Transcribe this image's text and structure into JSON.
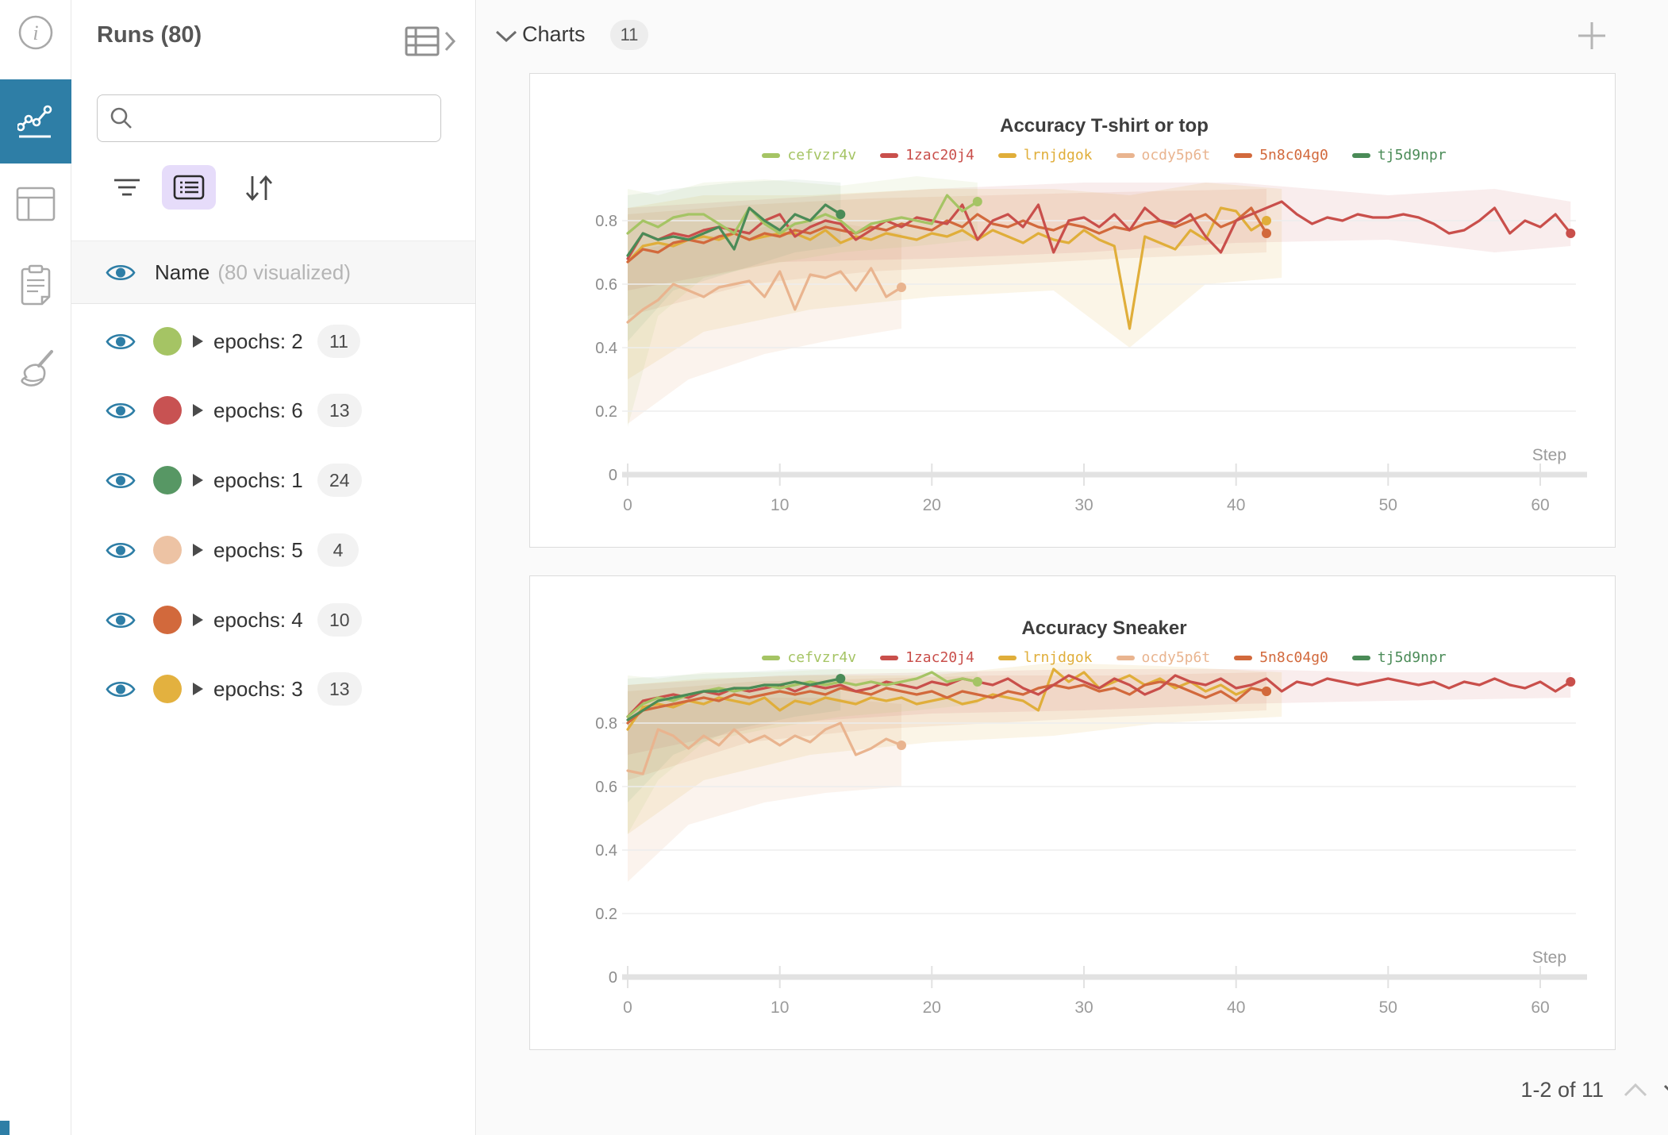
{
  "left_rail": {
    "items": [
      {
        "icon": "info-icon",
        "selected": false
      },
      {
        "icon": "line-chart-icon",
        "selected": true
      },
      {
        "icon": "table-panel-icon",
        "selected": false
      },
      {
        "icon": "clipboard-icon",
        "selected": false
      },
      {
        "icon": "broom-icon",
        "selected": false
      }
    ]
  },
  "runs_panel": {
    "title": "Runs (80)",
    "search": {
      "placeholder": "",
      "value": ""
    },
    "header_row": {
      "name": "Name",
      "visualized": "(80 visualized)"
    },
    "groups": [
      {
        "label": "epochs: 2",
        "count": "11",
        "color": "#a5c464"
      },
      {
        "label": "epochs: 6",
        "count": "13",
        "color": "#c85252"
      },
      {
        "label": "epochs: 1",
        "count": "24",
        "color": "#579764"
      },
      {
        "label": "epochs: 5",
        "count": "4",
        "color": "#edc3a4"
      },
      {
        "label": "epochs: 4",
        "count": "10",
        "color": "#d2693c"
      },
      {
        "label": "epochs: 3",
        "count": "13",
        "color": "#e3b13f"
      }
    ]
  },
  "main": {
    "section_title": "Charts",
    "section_count": "11",
    "pagination": {
      "label": "1-2 of 11"
    }
  },
  "chart_data": [
    {
      "type": "line",
      "title": "Accuracy T-shirt or top",
      "xlabel": "Step",
      "x_ticks": [
        0,
        10,
        20,
        30,
        40,
        50,
        60
      ],
      "y_ticks": [
        0,
        0.2,
        0.4,
        0.6,
        0.8
      ],
      "xlim": [
        0,
        63
      ],
      "ylim": [
        0,
        1.05
      ],
      "grid": true,
      "legend_position": "top",
      "x0": 0,
      "dx": 1,
      "series": [
        {
          "name": "cefvzr4v",
          "color": "#a5c464",
          "y": [
            0.76,
            0.8,
            0.78,
            0.81,
            0.82,
            0.82,
            0.79,
            0.76,
            0.84,
            0.79,
            0.76,
            0.79,
            0.8,
            0.82,
            0.8,
            0.76,
            0.79,
            0.8,
            0.81,
            0.8,
            0.79,
            0.88,
            0.83,
            0.86
          ],
          "band": {
            "x": [
              0,
              2,
              5,
              9,
              14,
              19,
              23
            ],
            "upper": [
              0.9,
              0.88,
              0.92,
              0.93,
              0.91,
              0.94,
              0.92
            ],
            "lower": [
              0.15,
              0.5,
              0.62,
              0.66,
              0.7,
              0.72,
              0.74
            ],
            "opacity": 0.1
          }
        },
        {
          "name": "1zac20j4",
          "color": "#c94f4b",
          "y": [
            0.68,
            0.76,
            0.74,
            0.76,
            0.75,
            0.77,
            0.78,
            0.77,
            0.76,
            0.8,
            0.82,
            0.75,
            0.78,
            0.8,
            0.79,
            0.74,
            0.77,
            0.8,
            0.78,
            0.81,
            0.8,
            0.79,
            0.85,
            0.74,
            0.8,
            0.82,
            0.78,
            0.85,
            0.7,
            0.8,
            0.81,
            0.78,
            0.82,
            0.77,
            0.84,
            0.8,
            0.79,
            0.82,
            0.75,
            0.7,
            0.8,
            0.82,
            0.84,
            0.86,
            0.82,
            0.79,
            0.81,
            0.8,
            0.82,
            0.81,
            0.81,
            0.82,
            0.81,
            0.79,
            0.76,
            0.77,
            0.8,
            0.84,
            0.76,
            0.8,
            0.78,
            0.82,
            0.76
          ],
          "band": {
            "x": [
              0,
              10,
              20,
              30,
              40,
              50,
              57,
              62
            ],
            "upper": [
              0.84,
              0.87,
              0.9,
              0.92,
              0.92,
              0.88,
              0.9,
              0.86
            ],
            "lower": [
              0.58,
              0.67,
              0.68,
              0.7,
              0.73,
              0.74,
              0.7,
              0.72
            ],
            "opacity": 0.1
          }
        },
        {
          "name": "lrnjdgok",
          "color": "#e0ae3a",
          "y": [
            0.67,
            0.72,
            0.73,
            0.72,
            0.74,
            0.75,
            0.74,
            0.76,
            0.74,
            0.75,
            0.76,
            0.76,
            0.74,
            0.77,
            0.73,
            0.75,
            0.74,
            0.76,
            0.75,
            0.74,
            0.76,
            0.75,
            0.77,
            0.74,
            0.77,
            0.75,
            0.73,
            0.76,
            0.74,
            0.73,
            0.77,
            0.74,
            0.72,
            0.46,
            0.75,
            0.73,
            0.71,
            0.77,
            0.74,
            0.84,
            0.83,
            0.77,
            0.8
          ],
          "band": {
            "x": [
              0,
              5,
              12,
              20,
              28,
              33,
              38,
              43
            ],
            "upper": [
              0.84,
              0.88,
              0.88,
              0.9,
              0.9,
              0.88,
              0.92,
              0.9
            ],
            "lower": [
              0.3,
              0.45,
              0.52,
              0.56,
              0.58,
              0.4,
              0.6,
              0.62
            ],
            "opacity": 0.12
          }
        },
        {
          "name": "ocdy5p6t",
          "color": "#e9b48f",
          "y": [
            0.48,
            0.52,
            0.55,
            0.6,
            0.58,
            0.56,
            0.59,
            0.6,
            0.61,
            0.56,
            0.64,
            0.52,
            0.63,
            0.62,
            0.64,
            0.58,
            0.65,
            0.56,
            0.59
          ],
          "band": {
            "x": [
              0,
              4,
              9,
              13,
              18
            ],
            "upper": [
              0.7,
              0.74,
              0.78,
              0.8,
              0.76
            ],
            "lower": [
              0.16,
              0.3,
              0.38,
              0.42,
              0.46
            ],
            "opacity": 0.16
          }
        },
        {
          "name": "5n8c04g0",
          "color": "#d2693c",
          "y": [
            0.67,
            0.71,
            0.7,
            0.73,
            0.74,
            0.73,
            0.75,
            0.76,
            0.74,
            0.76,
            0.75,
            0.77,
            0.76,
            0.78,
            0.77,
            0.76,
            0.78,
            0.77,
            0.79,
            0.78,
            0.77,
            0.8,
            0.78,
            0.82,
            0.79,
            0.78,
            0.8,
            0.78,
            0.77,
            0.79,
            0.78,
            0.76,
            0.78,
            0.77,
            0.79,
            0.8,
            0.78,
            0.8,
            0.82,
            0.78,
            0.8,
            0.84,
            0.76
          ],
          "band": {
            "x": [
              0,
              8,
              16,
              24,
              32,
              42
            ],
            "upper": [
              0.82,
              0.85,
              0.87,
              0.88,
              0.89,
              0.9
            ],
            "lower": [
              0.5,
              0.6,
              0.64,
              0.66,
              0.68,
              0.7
            ],
            "opacity": 0.1
          }
        },
        {
          "name": "tj5d9npr",
          "color": "#4a8b57",
          "y": [
            0.69,
            0.76,
            0.74,
            0.75,
            0.74,
            0.76,
            0.78,
            0.71,
            0.84,
            0.8,
            0.77,
            0.82,
            0.8,
            0.85,
            0.82
          ],
          "band": {
            "x": [
              0,
              3,
              7,
              11,
              14
            ],
            "upper": [
              0.88,
              0.9,
              0.92,
              0.93,
              0.92
            ],
            "lower": [
              0.42,
              0.58,
              0.64,
              0.7,
              0.72
            ],
            "opacity": 0.08
          }
        }
      ]
    },
    {
      "type": "line",
      "title": "Accuracy Sneaker",
      "xlabel": "Step",
      "x_ticks": [
        0,
        10,
        20,
        30,
        40,
        50,
        60
      ],
      "y_ticks": [
        0,
        0.2,
        0.4,
        0.6,
        0.8
      ],
      "xlim": [
        0,
        63
      ],
      "ylim": [
        0,
        1.05
      ],
      "grid": true,
      "legend_position": "top",
      "x0": 0,
      "dx": 1,
      "series": [
        {
          "name": "cefvzr4v",
          "color": "#a5c464",
          "y": [
            0.82,
            0.86,
            0.88,
            0.87,
            0.89,
            0.9,
            0.91,
            0.9,
            0.91,
            0.92,
            0.91,
            0.92,
            0.93,
            0.92,
            0.93,
            0.92,
            0.93,
            0.92,
            0.93,
            0.94,
            0.96,
            0.93,
            0.94,
            0.93
          ],
          "band": {
            "x": [
              0,
              2,
              5,
              9,
              14,
              19,
              23
            ],
            "upper": [
              0.95,
              0.94,
              0.96,
              0.96,
              0.97,
              0.97,
              0.96
            ],
            "lower": [
              0.45,
              0.62,
              0.74,
              0.78,
              0.82,
              0.84,
              0.86
            ],
            "opacity": 0.1
          }
        },
        {
          "name": "1zac20j4",
          "color": "#c94f4b",
          "y": [
            0.82,
            0.87,
            0.88,
            0.89,
            0.88,
            0.9,
            0.89,
            0.91,
            0.9,
            0.91,
            0.92,
            0.9,
            0.92,
            0.91,
            0.92,
            0.9,
            0.91,
            0.93,
            0.92,
            0.91,
            0.93,
            0.92,
            0.94,
            0.93,
            0.92,
            0.94,
            0.91,
            0.89,
            0.92,
            0.95,
            0.93,
            0.91,
            0.94,
            0.92,
            0.89,
            0.91,
            0.95,
            0.93,
            0.92,
            0.94,
            0.91,
            0.92,
            0.94,
            0.9,
            0.93,
            0.92,
            0.94,
            0.93,
            0.92,
            0.93,
            0.94,
            0.93,
            0.92,
            0.93,
            0.91,
            0.93,
            0.92,
            0.94,
            0.92,
            0.91,
            0.93,
            0.9,
            0.93
          ],
          "band": {
            "x": [
              0,
              10,
              20,
              30,
              40,
              50,
              62
            ],
            "upper": [
              0.92,
              0.95,
              0.96,
              0.97,
              0.97,
              0.96,
              0.96
            ],
            "lower": [
              0.7,
              0.8,
              0.83,
              0.84,
              0.86,
              0.87,
              0.88
            ],
            "opacity": 0.1
          }
        },
        {
          "name": "lrnjdgok",
          "color": "#e0ae3a",
          "y": [
            0.78,
            0.85,
            0.86,
            0.85,
            0.87,
            0.86,
            0.88,
            0.87,
            0.86,
            0.88,
            0.84,
            0.87,
            0.86,
            0.88,
            0.87,
            0.86,
            0.88,
            0.87,
            0.88,
            0.86,
            0.87,
            0.88,
            0.86,
            0.87,
            0.89,
            0.88,
            0.87,
            0.84,
            0.97,
            0.93,
            0.96,
            0.91,
            0.93,
            0.95,
            0.92,
            0.94,
            0.91,
            0.93,
            0.9,
            0.92,
            0.89,
            0.91,
            0.9
          ],
          "band": {
            "x": [
              0,
              5,
              12,
              20,
              28,
              35,
              43
            ],
            "upper": [
              0.92,
              0.94,
              0.95,
              0.95,
              0.99,
              0.98,
              0.96
            ],
            "lower": [
              0.45,
              0.62,
              0.7,
              0.74,
              0.76,
              0.8,
              0.82
            ],
            "opacity": 0.12
          }
        },
        {
          "name": "ocdy5p6t",
          "color": "#e9b48f",
          "y": [
            0.65,
            0.64,
            0.78,
            0.76,
            0.72,
            0.76,
            0.73,
            0.78,
            0.74,
            0.76,
            0.73,
            0.76,
            0.74,
            0.78,
            0.8,
            0.7,
            0.72,
            0.75,
            0.73
          ],
          "band": {
            "x": [
              0,
              4,
              9,
              13,
              18
            ],
            "upper": [
              0.84,
              0.86,
              0.88,
              0.88,
              0.86
            ],
            "lower": [
              0.3,
              0.48,
              0.55,
              0.58,
              0.6
            ],
            "opacity": 0.16
          }
        },
        {
          "name": "5n8c04g0",
          "color": "#d2693c",
          "y": [
            0.8,
            0.84,
            0.85,
            0.86,
            0.87,
            0.88,
            0.87,
            0.89,
            0.88,
            0.89,
            0.9,
            0.89,
            0.9,
            0.89,
            0.91,
            0.9,
            0.89,
            0.91,
            0.9,
            0.89,
            0.9,
            0.88,
            0.9,
            0.89,
            0.88,
            0.9,
            0.89,
            0.91,
            0.92,
            0.91,
            0.92,
            0.9,
            0.91,
            0.89,
            0.92,
            0.93,
            0.92,
            0.9,
            0.88,
            0.9,
            0.87,
            0.91,
            0.9
          ],
          "band": {
            "x": [
              0,
              8,
              16,
              24,
              32,
              42
            ],
            "upper": [
              0.9,
              0.93,
              0.94,
              0.95,
              0.95,
              0.96
            ],
            "lower": [
              0.62,
              0.74,
              0.78,
              0.8,
              0.82,
              0.84
            ],
            "opacity": 0.1
          }
        },
        {
          "name": "tj5d9npr",
          "color": "#4a8b57",
          "y": [
            0.81,
            0.84,
            0.87,
            0.88,
            0.89,
            0.9,
            0.9,
            0.91,
            0.91,
            0.92,
            0.92,
            0.93,
            0.92,
            0.93,
            0.94
          ],
          "band": {
            "x": [
              0,
              3,
              7,
              11,
              14
            ],
            "upper": [
              0.94,
              0.95,
              0.96,
              0.97,
              0.97
            ],
            "lower": [
              0.55,
              0.7,
              0.78,
              0.82,
              0.84
            ],
            "opacity": 0.08
          }
        }
      ]
    }
  ]
}
